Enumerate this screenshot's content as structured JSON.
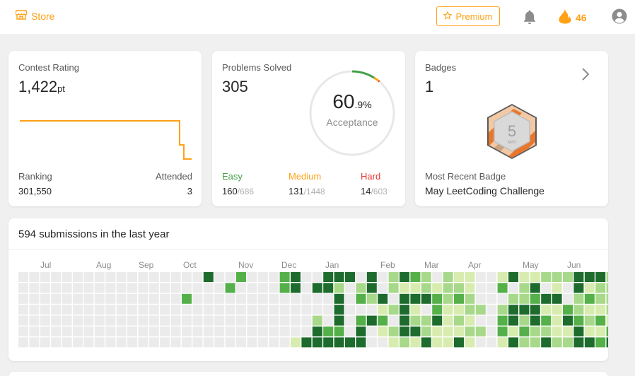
{
  "nav": {
    "store_label": "Store",
    "premium_label": "Premium",
    "streak_count": "46"
  },
  "colors": {
    "accent": "#ffa116",
    "easy": "#43a047",
    "medium": "#ffa116",
    "hard": "#e53935",
    "heat": [
      "#ebebeb",
      "#d8ecb0",
      "#a8d98a",
      "#55b04a",
      "#1e6b2e"
    ]
  },
  "contest": {
    "title": "Contest Rating",
    "rating": "1,422",
    "rating_unit": "pt",
    "ranking_label": "Ranking",
    "ranking_value": "301,550",
    "attended_label": "Attended",
    "attended_value": "3"
  },
  "problems": {
    "title": "Problems Solved",
    "total": "305",
    "acceptance_int": "60",
    "acceptance_dec": ".9%",
    "acceptance_label": "Acceptance",
    "easy_label": "Easy",
    "easy_solved": "160",
    "easy_total": "/686",
    "medium_label": "Medium",
    "medium_solved": "131",
    "medium_total": "/1448",
    "hard_label": "Hard",
    "hard_solved": "14",
    "hard_total": "/603"
  },
  "badges": {
    "title": "Badges",
    "count": "1",
    "badge_number": "5",
    "badge_month": "MAY",
    "recent_label": "Most Recent Badge",
    "recent_name": "May LeetCoding Challenge"
  },
  "activity": {
    "title": "594 submissions in the last year",
    "months": [
      "Jul",
      "Aug",
      "Sep",
      "Oct",
      "Nov",
      "Dec",
      "Jan",
      "Feb",
      "Mar",
      "Apr",
      "May",
      "Jun"
    ],
    "grid": [
      "00000000000000000000000000000000000000000000000000000000000000000000000000000000000000000000000000000000000000000000000000000000000000000000000000000000000000000000000000000000000000003001000000000000000000000000000000000000000000000000000000000000000000000000000000000000000000000000000000000000000000000000000000000000",
      "0000000000000000000000000000000000000000000000000000000000000000000000000000000000000000000000000000000000000000000000000000000000000000000000000000000000000000000000000000000000000000000000000000000000000000000000000000000000000000000000000000000000000000000000000000000000000000000000000000000000000000000000000000000000000000"
    ],
    "levels_note": "",
    "weeks": [
      "0000000",
      "0000000",
      "0000000",
      "0000000",
      "0000000",
      "0000000",
      "0000000",
      "0000000",
      "0000000",
      "0000000",
      "0000000",
      "0000000",
      "0000000",
      "0000000",
      "0000000",
      "0030000",
      "0000000",
      "4000000",
      "0000000",
      "0300000",
      "3000000",
      "0000000",
      "0000000",
      "0000000",
      "3300000",
      "4400001",
      "0000004",
      "0400244",
      "4400034",
      "4244434",
      "4000004",
      "0230344",
      "4420400",
      "0041310",
      "2202021",
      "4144442",
      "3141241",
      "2240224",
      "0133411",
      "2221111",
      "1231214",
      "1122121",
      "0002020",
      "0000000",
      "1302331",
      "4024414",
      "1224232",
      "1434422",
      "2041324",
      "2141112",
      "2003412",
      "4422344",
      "4131214",
      "4221313",
      "2222134",
      "3442424",
      "2222222"
    ]
  }
}
